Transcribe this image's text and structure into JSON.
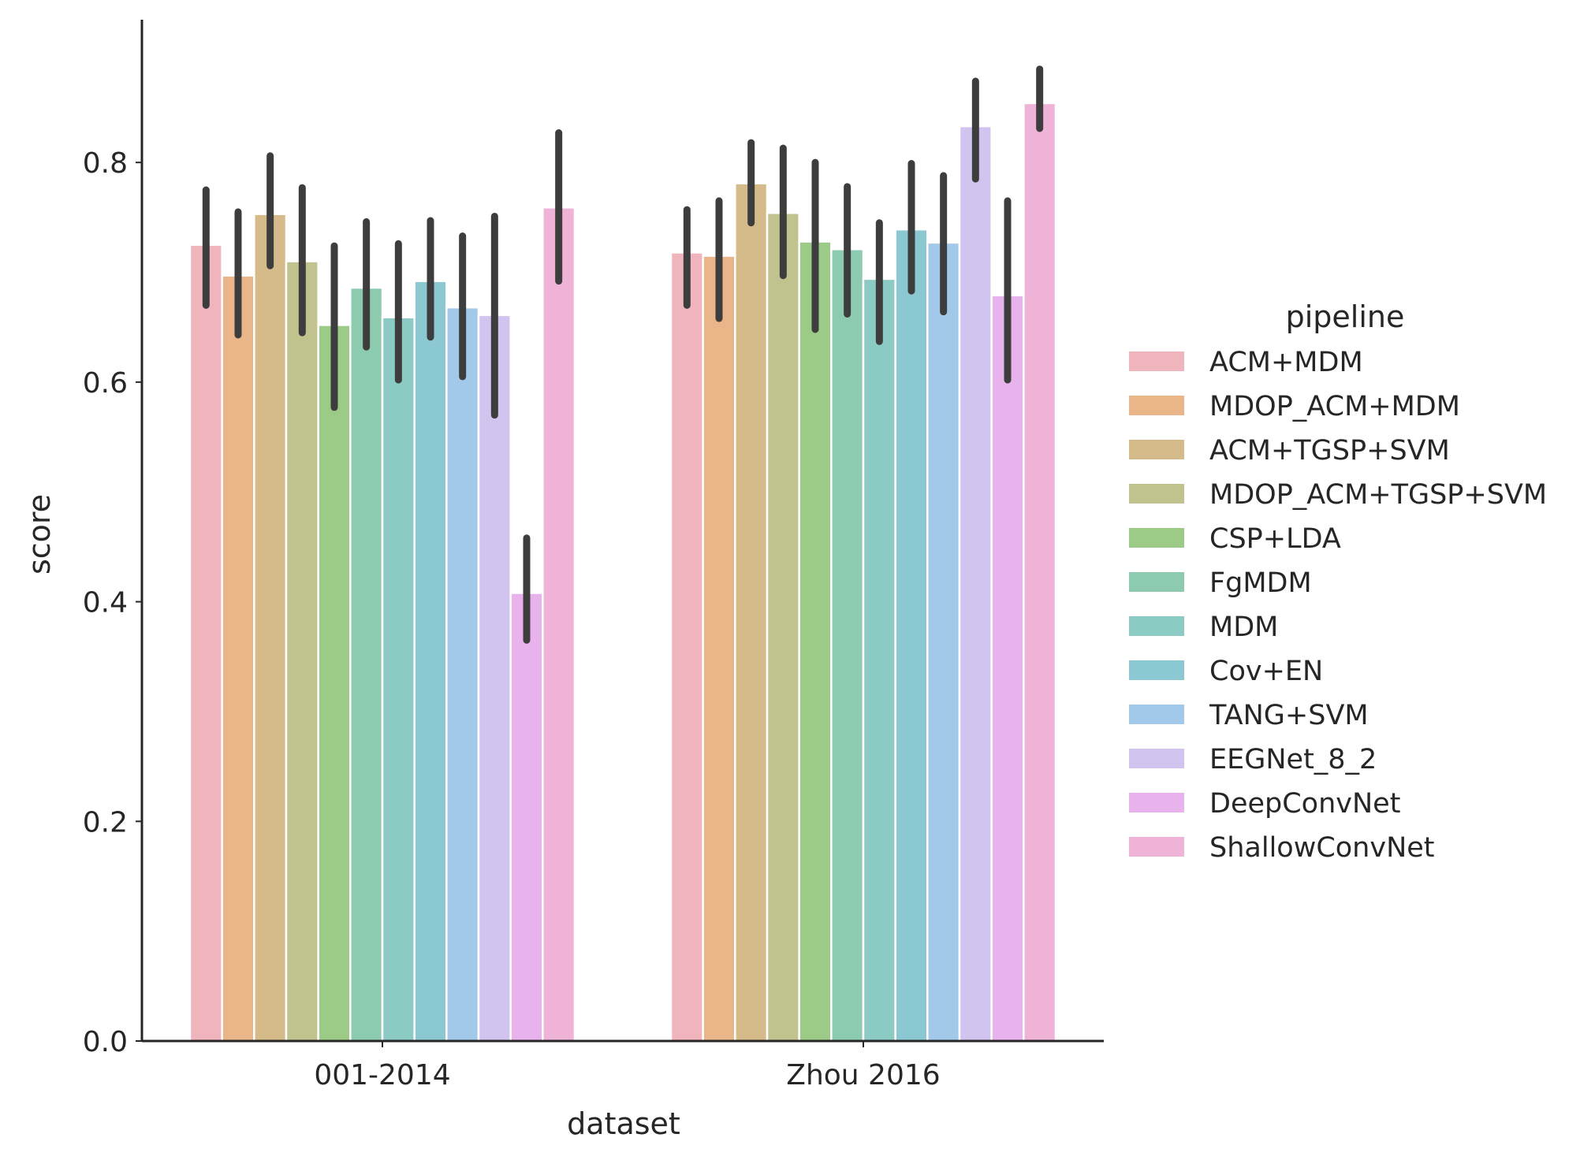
{
  "chart_data": {
    "type": "bar",
    "xlabel": "dataset",
    "ylabel": "score",
    "ylim": [
      0.0,
      0.93
    ],
    "yticks": [
      0.0,
      0.2,
      0.4,
      0.6,
      0.8
    ],
    "ytick_labels": [
      "0.0",
      "0.2",
      "0.4",
      "0.6",
      "0.8"
    ],
    "categories": [
      "001-2014",
      "Zhou 2016"
    ],
    "legend": {
      "title": "pipeline",
      "position": "right"
    },
    "series": [
      {
        "name": "ACM+MDM",
        "color": "#f0b4bc",
        "values": [
          0.725,
          0.718
        ],
        "ci": [
          [
            0.67,
            0.775
          ],
          [
            0.67,
            0.757
          ]
        ]
      },
      {
        "name": "MDOP_ACM+MDM",
        "color": "#ebb58a",
        "values": [
          0.697,
          0.715
        ],
        "ci": [
          [
            0.643,
            0.755
          ],
          [
            0.658,
            0.765
          ]
        ]
      },
      {
        "name": "ACM+TGSP+SVM",
        "color": "#d5bb89",
        "values": [
          0.753,
          0.781
        ],
        "ci": [
          [
            0.706,
            0.806
          ],
          [
            0.745,
            0.818
          ]
        ]
      },
      {
        "name": "MDOP_ACM+TGSP+SVM",
        "color": "#c0c38d",
        "values": [
          0.71,
          0.754
        ],
        "ci": [
          [
            0.645,
            0.777
          ],
          [
            0.697,
            0.813
          ]
        ]
      },
      {
        "name": "CSP+LDA",
        "color": "#9ccb87",
        "values": [
          0.652,
          0.728
        ],
        "ci": [
          [
            0.577,
            0.724
          ],
          [
            0.648,
            0.8
          ]
        ]
      },
      {
        "name": "FgMDM",
        "color": "#8ccbb0",
        "values": [
          0.686,
          0.721
        ],
        "ci": [
          [
            0.632,
            0.746
          ],
          [
            0.662,
            0.778
          ]
        ]
      },
      {
        "name": "MDM",
        "color": "#8ccbc4",
        "values": [
          0.659,
          0.694
        ],
        "ci": [
          [
            0.602,
            0.726
          ],
          [
            0.637,
            0.745
          ]
        ]
      },
      {
        "name": "Cov+EN",
        "color": "#8cc8d2",
        "values": [
          0.692,
          0.739
        ],
        "ci": [
          [
            0.641,
            0.747
          ],
          [
            0.683,
            0.799
          ]
        ]
      },
      {
        "name": "TANG+SVM",
        "color": "#a2c9e9",
        "values": [
          0.668,
          0.727
        ],
        "ci": [
          [
            0.605,
            0.733
          ],
          [
            0.664,
            0.788
          ]
        ]
      },
      {
        "name": "EEGNet_8_2",
        "color": "#d1c4ee",
        "values": [
          0.661,
          0.833
        ],
        "ci": [
          [
            0.57,
            0.751
          ],
          [
            0.785,
            0.874
          ]
        ]
      },
      {
        "name": "DeepConvNet",
        "color": "#e8b2ec",
        "values": [
          0.408,
          0.679
        ],
        "ci": [
          [
            0.365,
            0.458
          ],
          [
            0.602,
            0.765
          ]
        ]
      },
      {
        "name": "ShallowConvNet",
        "color": "#efb3d8",
        "values": [
          0.759,
          0.854
        ],
        "ci": [
          [
            0.692,
            0.827
          ],
          [
            0.831,
            0.885
          ]
        ]
      }
    ]
  }
}
